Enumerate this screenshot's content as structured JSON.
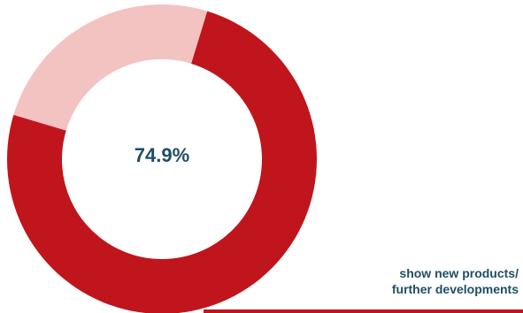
{
  "chart_data": {
    "type": "pie",
    "variant": "donut",
    "center_label": "74.9%",
    "slices": [
      {
        "value": 74.9,
        "color": "#c0151c"
      },
      {
        "value": 25.1,
        "color": "#f3c3c2"
      }
    ]
  },
  "caption": {
    "line1": "show new products/",
    "line2": "further developments"
  },
  "colors": {
    "primary": "#c0151c",
    "light": "#f3c3c2",
    "text": "#1f4e62"
  }
}
